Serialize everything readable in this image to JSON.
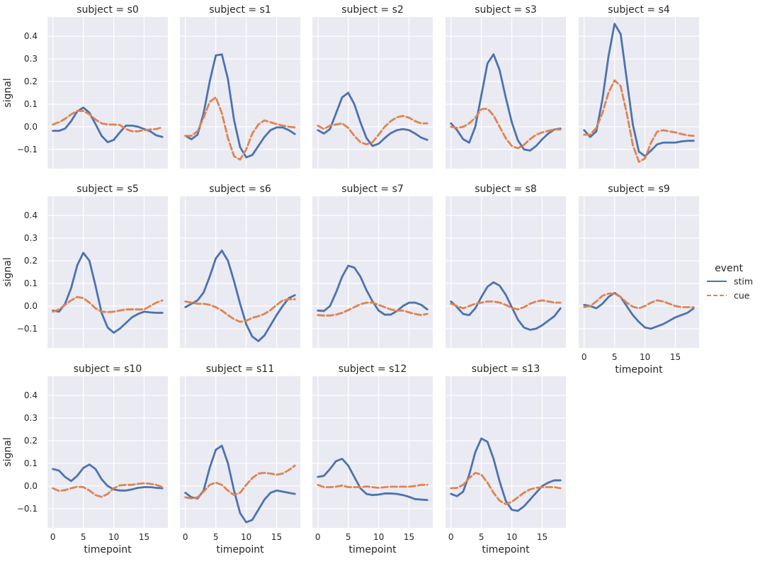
{
  "chart_data": {
    "type": "line",
    "layout": "facet-grid",
    "col_wrap": 5,
    "xlabel": "timepoint",
    "ylabel": "signal",
    "x": [
      0,
      1,
      2,
      3,
      4,
      5,
      6,
      7,
      8,
      9,
      10,
      11,
      12,
      13,
      14,
      15,
      16,
      17,
      18
    ],
    "xlim": [
      -0.9,
      18.9
    ],
    "ylim": [
      -0.185,
      0.485
    ],
    "xticks": [
      0,
      5,
      10,
      15
    ],
    "yticks": [
      -0.1,
      0.0,
      0.1,
      0.2,
      0.3,
      0.4
    ],
    "ytick_labels": [
      "−0.1",
      "0.0",
      "0.1",
      "0.2",
      "0.3",
      "0.4"
    ],
    "grid": true,
    "legend": {
      "title": "event",
      "placement": "center-right",
      "entries": [
        {
          "name": "stim",
          "color": "#4c72b0",
          "style": "solid"
        },
        {
          "name": "cue",
          "color": "#dd8452",
          "style": "dashed"
        }
      ]
    },
    "panels": [
      {
        "title": "subject = s0",
        "stim": [
          -0.018,
          -0.018,
          -0.008,
          0.025,
          0.068,
          0.085,
          0.062,
          0.012,
          -0.04,
          -0.068,
          -0.058,
          -0.025,
          0.005,
          0.005,
          0.0,
          -0.01,
          -0.02,
          -0.038,
          -0.045
        ],
        "cue": [
          0.01,
          0.02,
          0.035,
          0.055,
          0.07,
          0.07,
          0.055,
          0.032,
          0.015,
          0.01,
          0.01,
          0.008,
          -0.01,
          -0.02,
          -0.02,
          -0.015,
          -0.012,
          -0.01,
          -0.002
        ]
      },
      {
        "title": "subject = s1",
        "stim": [
          -0.04,
          -0.055,
          -0.035,
          0.06,
          0.2,
          0.315,
          0.32,
          0.21,
          0.03,
          -0.09,
          -0.135,
          -0.125,
          -0.085,
          -0.045,
          -0.015,
          -0.003,
          -0.003,
          -0.015,
          -0.032
        ],
        "cue": [
          -0.04,
          -0.04,
          -0.02,
          0.04,
          0.11,
          0.13,
          0.06,
          -0.05,
          -0.13,
          -0.145,
          -0.1,
          -0.03,
          0.01,
          0.028,
          0.02,
          0.012,
          0.005,
          0.0,
          -0.003
        ]
      },
      {
        "title": "subject = s2",
        "stim": [
          -0.015,
          -0.03,
          -0.01,
          0.06,
          0.13,
          0.15,
          0.1,
          0.02,
          -0.05,
          -0.085,
          -0.075,
          -0.05,
          -0.028,
          -0.015,
          -0.01,
          -0.015,
          -0.03,
          -0.048,
          -0.058
        ],
        "cue": [
          0.005,
          -0.01,
          0.005,
          0.01,
          0.015,
          -0.005,
          -0.04,
          -0.068,
          -0.078,
          -0.068,
          -0.035,
          0.0,
          0.025,
          0.042,
          0.048,
          0.04,
          0.025,
          0.015,
          0.015
        ]
      },
      {
        "title": "subject = s3",
        "stim": [
          0.015,
          -0.015,
          -0.055,
          -0.07,
          0.0,
          0.14,
          0.28,
          0.32,
          0.25,
          0.13,
          0.02,
          -0.06,
          -0.1,
          -0.105,
          -0.085,
          -0.055,
          -0.03,
          -0.012,
          -0.008
        ],
        "cue": [
          0.0,
          -0.005,
          0.0,
          0.015,
          0.04,
          0.078,
          0.08,
          0.05,
          0.0,
          -0.05,
          -0.085,
          -0.095,
          -0.08,
          -0.055,
          -0.035,
          -0.025,
          -0.018,
          -0.012,
          -0.012
        ]
      },
      {
        "title": "subject = s4",
        "stim": [
          -0.015,
          -0.045,
          -0.02,
          0.12,
          0.31,
          0.455,
          0.41,
          0.21,
          0.01,
          -0.11,
          -0.13,
          -0.105,
          -0.078,
          -0.07,
          -0.07,
          -0.07,
          -0.065,
          -0.062,
          -0.062
        ],
        "cue": [
          -0.035,
          -0.035,
          -0.005,
          0.06,
          0.15,
          0.205,
          0.18,
          0.06,
          -0.08,
          -0.155,
          -0.14,
          -0.07,
          -0.022,
          -0.015,
          -0.02,
          -0.025,
          -0.032,
          -0.038,
          -0.04
        ]
      },
      {
        "title": "subject = s5",
        "stim": [
          -0.02,
          -0.025,
          0.01,
          0.08,
          0.18,
          0.235,
          0.2,
          0.09,
          -0.03,
          -0.095,
          -0.118,
          -0.1,
          -0.075,
          -0.05,
          -0.035,
          -0.025,
          -0.028,
          -0.03,
          -0.03
        ],
        "cue": [
          -0.025,
          -0.015,
          0.005,
          0.025,
          0.04,
          0.035,
          0.015,
          -0.01,
          -0.025,
          -0.027,
          -0.025,
          -0.02,
          -0.015,
          -0.015,
          -0.015,
          -0.015,
          0.0,
          0.015,
          0.025
        ]
      },
      {
        "title": "subject = s6",
        "stim": [
          -0.005,
          0.01,
          0.025,
          0.06,
          0.13,
          0.21,
          0.245,
          0.2,
          0.11,
          0.01,
          -0.08,
          -0.135,
          -0.155,
          -0.13,
          -0.085,
          -0.04,
          0.0,
          0.035,
          0.048
        ],
        "cue": [
          0.02,
          0.015,
          0.01,
          0.01,
          0.005,
          -0.005,
          -0.02,
          -0.04,
          -0.058,
          -0.07,
          -0.065,
          -0.052,
          -0.045,
          -0.035,
          -0.018,
          0.005,
          0.025,
          0.03,
          0.03
        ]
      },
      {
        "title": "subject = s7",
        "stim": [
          -0.02,
          -0.022,
          0.0,
          0.06,
          0.13,
          0.178,
          0.17,
          0.13,
          0.07,
          0.02,
          -0.02,
          -0.038,
          -0.038,
          -0.022,
          0.0,
          0.015,
          0.015,
          0.005,
          -0.015
        ],
        "cue": [
          -0.04,
          -0.042,
          -0.042,
          -0.038,
          -0.03,
          -0.018,
          -0.005,
          0.008,
          0.015,
          0.015,
          0.005,
          -0.005,
          -0.015,
          -0.02,
          -0.02,
          -0.028,
          -0.035,
          -0.04,
          -0.035
        ]
      },
      {
        "title": "subject = s8",
        "stim": [
          0.02,
          -0.005,
          -0.035,
          -0.04,
          -0.01,
          0.04,
          0.085,
          0.105,
          0.09,
          0.05,
          -0.005,
          -0.06,
          -0.095,
          -0.105,
          -0.1,
          -0.085,
          -0.065,
          -0.045,
          -0.01
        ],
        "cue": [
          0.01,
          0.0,
          -0.01,
          0.0,
          0.01,
          0.015,
          0.02,
          0.02,
          0.015,
          0.005,
          -0.008,
          -0.015,
          -0.005,
          0.01,
          0.02,
          0.025,
          0.02,
          0.015,
          0.015
        ]
      },
      {
        "title": "subject = s9",
        "stim": [
          0.005,
          0.0,
          -0.01,
          0.01,
          0.04,
          0.058,
          0.04,
          0.0,
          -0.04,
          -0.07,
          -0.095,
          -0.1,
          -0.09,
          -0.08,
          -0.065,
          -0.05,
          -0.04,
          -0.03,
          -0.01
        ],
        "cue": [
          -0.005,
          0.0,
          0.02,
          0.045,
          0.055,
          0.055,
          0.04,
          0.015,
          -0.003,
          -0.01,
          0.0,
          0.015,
          0.025,
          0.02,
          0.01,
          0.0,
          -0.005,
          -0.005,
          -0.005
        ]
      },
      {
        "title": "subject = s10",
        "stim": [
          0.075,
          0.068,
          0.04,
          0.022,
          0.045,
          0.08,
          0.095,
          0.075,
          0.03,
          0.0,
          -0.015,
          -0.02,
          -0.02,
          -0.015,
          -0.008,
          -0.005,
          -0.005,
          -0.008,
          -0.01
        ],
        "cue": [
          -0.01,
          -0.022,
          -0.018,
          -0.01,
          -0.003,
          -0.005,
          -0.02,
          -0.04,
          -0.048,
          -0.035,
          -0.01,
          0.003,
          0.005,
          0.005,
          0.01,
          0.012,
          0.01,
          0.005,
          -0.005
        ]
      },
      {
        "title": "subject = s11",
        "stim": [
          -0.03,
          -0.05,
          -0.055,
          -0.02,
          0.08,
          0.16,
          0.178,
          0.1,
          -0.02,
          -0.12,
          -0.16,
          -0.15,
          -0.105,
          -0.06,
          -0.03,
          -0.02,
          -0.025,
          -0.03,
          -0.035
        ],
        "cue": [
          -0.05,
          -0.055,
          -0.05,
          -0.025,
          0.005,
          0.015,
          0.005,
          -0.02,
          -0.04,
          -0.03,
          0.005,
          0.035,
          0.055,
          0.058,
          0.055,
          0.05,
          0.055,
          0.07,
          0.09
        ]
      },
      {
        "title": "subject = s12",
        "stim": [
          0.04,
          0.045,
          0.075,
          0.11,
          0.12,
          0.09,
          0.04,
          -0.01,
          -0.035,
          -0.04,
          -0.038,
          -0.033,
          -0.033,
          -0.035,
          -0.04,
          -0.048,
          -0.058,
          -0.06,
          -0.062
        ],
        "cue": [
          0.005,
          -0.005,
          -0.005,
          -0.003,
          0.002,
          -0.005,
          -0.005,
          -0.005,
          -0.002,
          -0.005,
          -0.008,
          -0.005,
          -0.003,
          -0.003,
          -0.003,
          -0.003,
          0.0,
          0.005,
          0.005
        ]
      },
      {
        "title": "subject = s13",
        "stim": [
          -0.035,
          -0.045,
          -0.025,
          0.05,
          0.15,
          0.21,
          0.195,
          0.12,
          0.02,
          -0.065,
          -0.105,
          -0.11,
          -0.09,
          -0.06,
          -0.03,
          0.0,
          0.015,
          0.025,
          0.025
        ],
        "cue": [
          -0.01,
          -0.008,
          0.005,
          0.035,
          0.058,
          0.05,
          0.015,
          -0.03,
          -0.065,
          -0.08,
          -0.07,
          -0.05,
          -0.03,
          -0.015,
          -0.008,
          -0.005,
          -0.005,
          -0.005,
          -0.01
        ]
      }
    ]
  }
}
